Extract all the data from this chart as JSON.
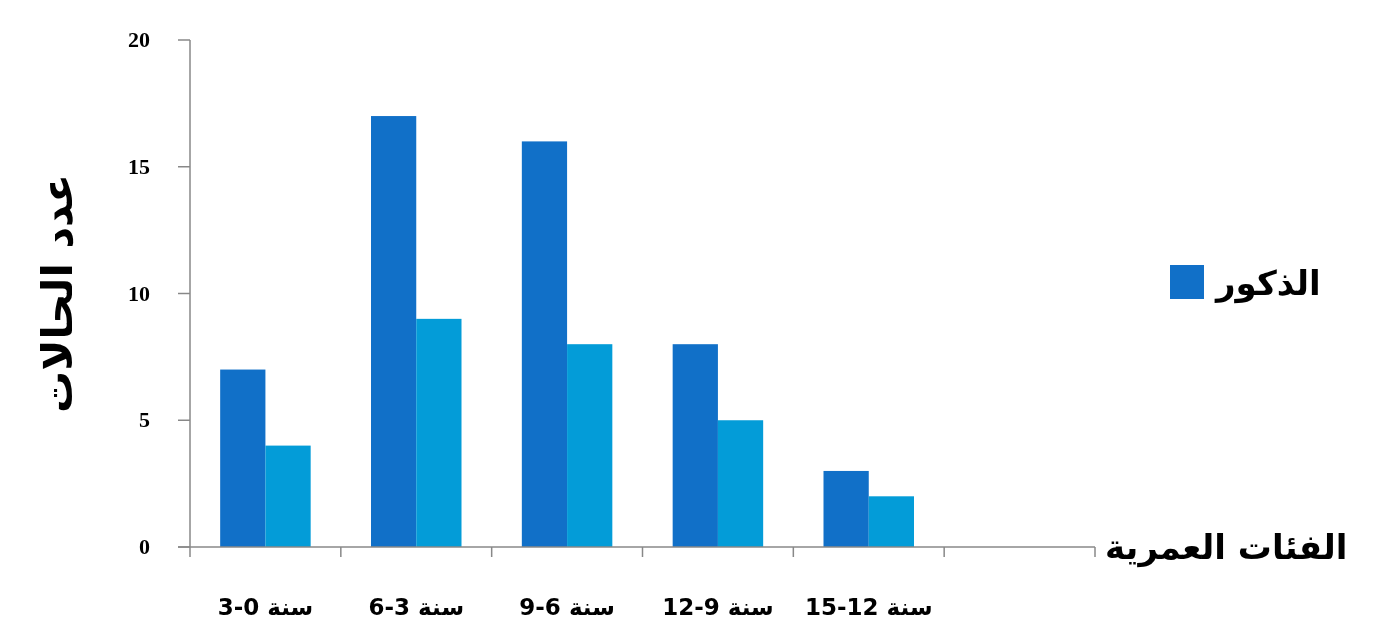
{
  "chart_data": {
    "type": "bar",
    "ylabel": "عدد الحالات",
    "xlabel": "الفئات العمرية",
    "categories": [
      "3-0 سنة",
      "6-3 سنة",
      "9-6 سنة",
      "12-9 سنة",
      "15-12 سنة",
      null
    ],
    "series": [
      {
        "name": "الذكور",
        "color": "#1170c8",
        "values": [
          7,
          17,
          16,
          8,
          3,
          null
        ]
      },
      {
        "color": "#039cd8",
        "values": [
          4,
          9,
          8,
          5,
          2,
          null
        ]
      }
    ],
    "ylim": [
      0,
      20
    ],
    "yticks": [
      0,
      5,
      10,
      15,
      20
    ],
    "grid": false,
    "legend": "right"
  }
}
